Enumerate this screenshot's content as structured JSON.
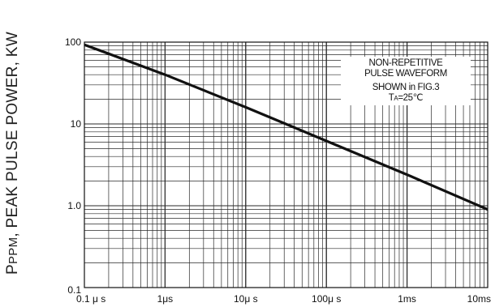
{
  "chart_data": {
    "type": "line",
    "x_scale": "log",
    "y_scale": "log",
    "xlim": [
      1e-07,
      0.01
    ],
    "ylim": [
      0.1,
      100
    ],
    "grid": true,
    "ylabel_prefix": "P",
    "ylabel_sub": "PPM",
    "ylabel_rest": ", PEAK PULSE POWER, KW",
    "xtick_labels": [
      "0.1 μ s",
      "1μs",
      "10μ s",
      "100μ s",
      "1ms",
      "10ms"
    ],
    "ytick_labels": [
      "100",
      "10",
      "1.0",
      "0.1"
    ],
    "annotation": {
      "line1": "NON-REPETITIVE",
      "line2": "PULSE WAVEFORM",
      "line3": "SHOWN in FIG.3",
      "ta_prefix": "T",
      "ta_sub": "A",
      "ta_rest": "=25℃"
    },
    "series": [
      {
        "color": "#111111",
        "x": [
          1e-07,
          1e-06,
          1e-05,
          0.0001,
          0.001,
          0.01
        ],
        "y": [
          93,
          40,
          16,
          6.2,
          2.4,
          0.9
        ]
      }
    ]
  }
}
